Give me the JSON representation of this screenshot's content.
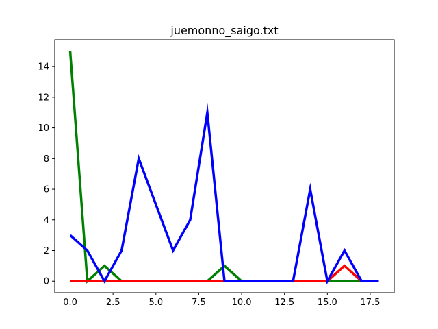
{
  "chart_data": {
    "type": "line",
    "title": "juemonno_saigo.txt",
    "xlabel": "",
    "ylabel": "",
    "x": [
      0,
      1,
      2,
      3,
      4,
      5,
      6,
      7,
      8,
      9,
      10,
      11,
      12,
      13,
      14,
      15,
      16,
      17,
      18
    ],
    "xlim": [
      -0.9,
      18.9
    ],
    "ylim": [
      -0.75,
      15.75
    ],
    "xticks": [
      0,
      2.5,
      5,
      7.5,
      10,
      12.5,
      15,
      17.5
    ],
    "xtick_labels": [
      "0.0",
      "2.5",
      "5.0",
      "7.5",
      "10.0",
      "12.5",
      "15.0",
      "17.5"
    ],
    "yticks": [
      0,
      2,
      4,
      6,
      8,
      10,
      12,
      14
    ],
    "ytick_labels": [
      "0",
      "2",
      "4",
      "6",
      "8",
      "10",
      "12",
      "14"
    ],
    "grid": false,
    "series": [
      {
        "color": "#008000",
        "values": [
          15,
          0,
          1,
          0,
          0,
          0,
          0,
          0,
          0,
          1,
          0,
          0,
          0,
          0,
          0,
          0,
          0,
          0,
          0
        ]
      },
      {
        "color": "#ff0000",
        "values": [
          0,
          0,
          0,
          0,
          0,
          0,
          0,
          0,
          0,
          0,
          0,
          0,
          0,
          0,
          0,
          0,
          1,
          0,
          0
        ]
      },
      {
        "color": "#0000ff",
        "values": [
          3,
          2,
          0,
          2,
          8,
          5,
          2,
          4,
          11,
          0,
          0,
          0,
          0,
          0,
          6,
          0,
          2,
          0,
          0
        ]
      }
    ]
  }
}
